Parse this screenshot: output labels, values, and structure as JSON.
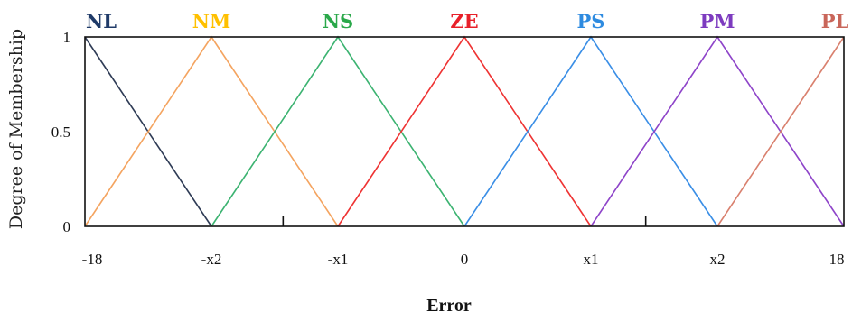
{
  "chart_data": {
    "type": "line",
    "xlabel": "Error",
    "ylabel": "Degree of Membership",
    "xlim": [
      -18,
      18
    ],
    "ylim": [
      0,
      1
    ],
    "x_ticks": [
      {
        "label": "-18",
        "value": -18
      },
      {
        "label": "-x2",
        "value": -12
      },
      {
        "label": "-x1",
        "value": -6
      },
      {
        "label": "0",
        "value": 0
      },
      {
        "label": "x1",
        "value": 6
      },
      {
        "label": "x2",
        "value": 12
      },
      {
        "label": "18",
        "value": 18
      }
    ],
    "y_ticks": [
      {
        "label": "0",
        "value": 0
      },
      {
        "label": "0.5",
        "value": 0.5
      },
      {
        "label": "1",
        "value": 1
      }
    ],
    "minor_ticks": [
      -8.6,
      8.6
    ],
    "grid": false,
    "series": [
      {
        "name": "NL",
        "color": "#2e3b55",
        "x": [
          -18,
          -12
        ],
        "y": [
          1,
          0
        ]
      },
      {
        "name": "NM",
        "color": "#f4a460",
        "x": [
          -18,
          -12,
          -6
        ],
        "y": [
          0,
          1,
          0
        ]
      },
      {
        "name": "NS",
        "color": "#3cb371",
        "x": [
          -12,
          -6,
          0
        ],
        "y": [
          0,
          1,
          0
        ]
      },
      {
        "name": "ZE",
        "color": "#ee3333",
        "x": [
          -6,
          0,
          6
        ],
        "y": [
          0,
          1,
          0
        ]
      },
      {
        "name": "PS",
        "color": "#3a8ee6",
        "x": [
          0,
          6,
          12
        ],
        "y": [
          0,
          1,
          0
        ]
      },
      {
        "name": "PM",
        "color": "#8e44c9",
        "x": [
          6,
          12,
          18
        ],
        "y": [
          0,
          1,
          0
        ]
      },
      {
        "name": "PL",
        "color": "#d9806e",
        "x": [
          12,
          18
        ],
        "y": [
          0,
          1
        ]
      }
    ],
    "label_colors": {
      "NL": "#1f3a68",
      "NM": "#ffc000",
      "NS": "#2aa84a",
      "ZE": "#e8202a",
      "PS": "#2e8be0",
      "PM": "#7d3bbf",
      "PL": "#c9665a"
    }
  }
}
